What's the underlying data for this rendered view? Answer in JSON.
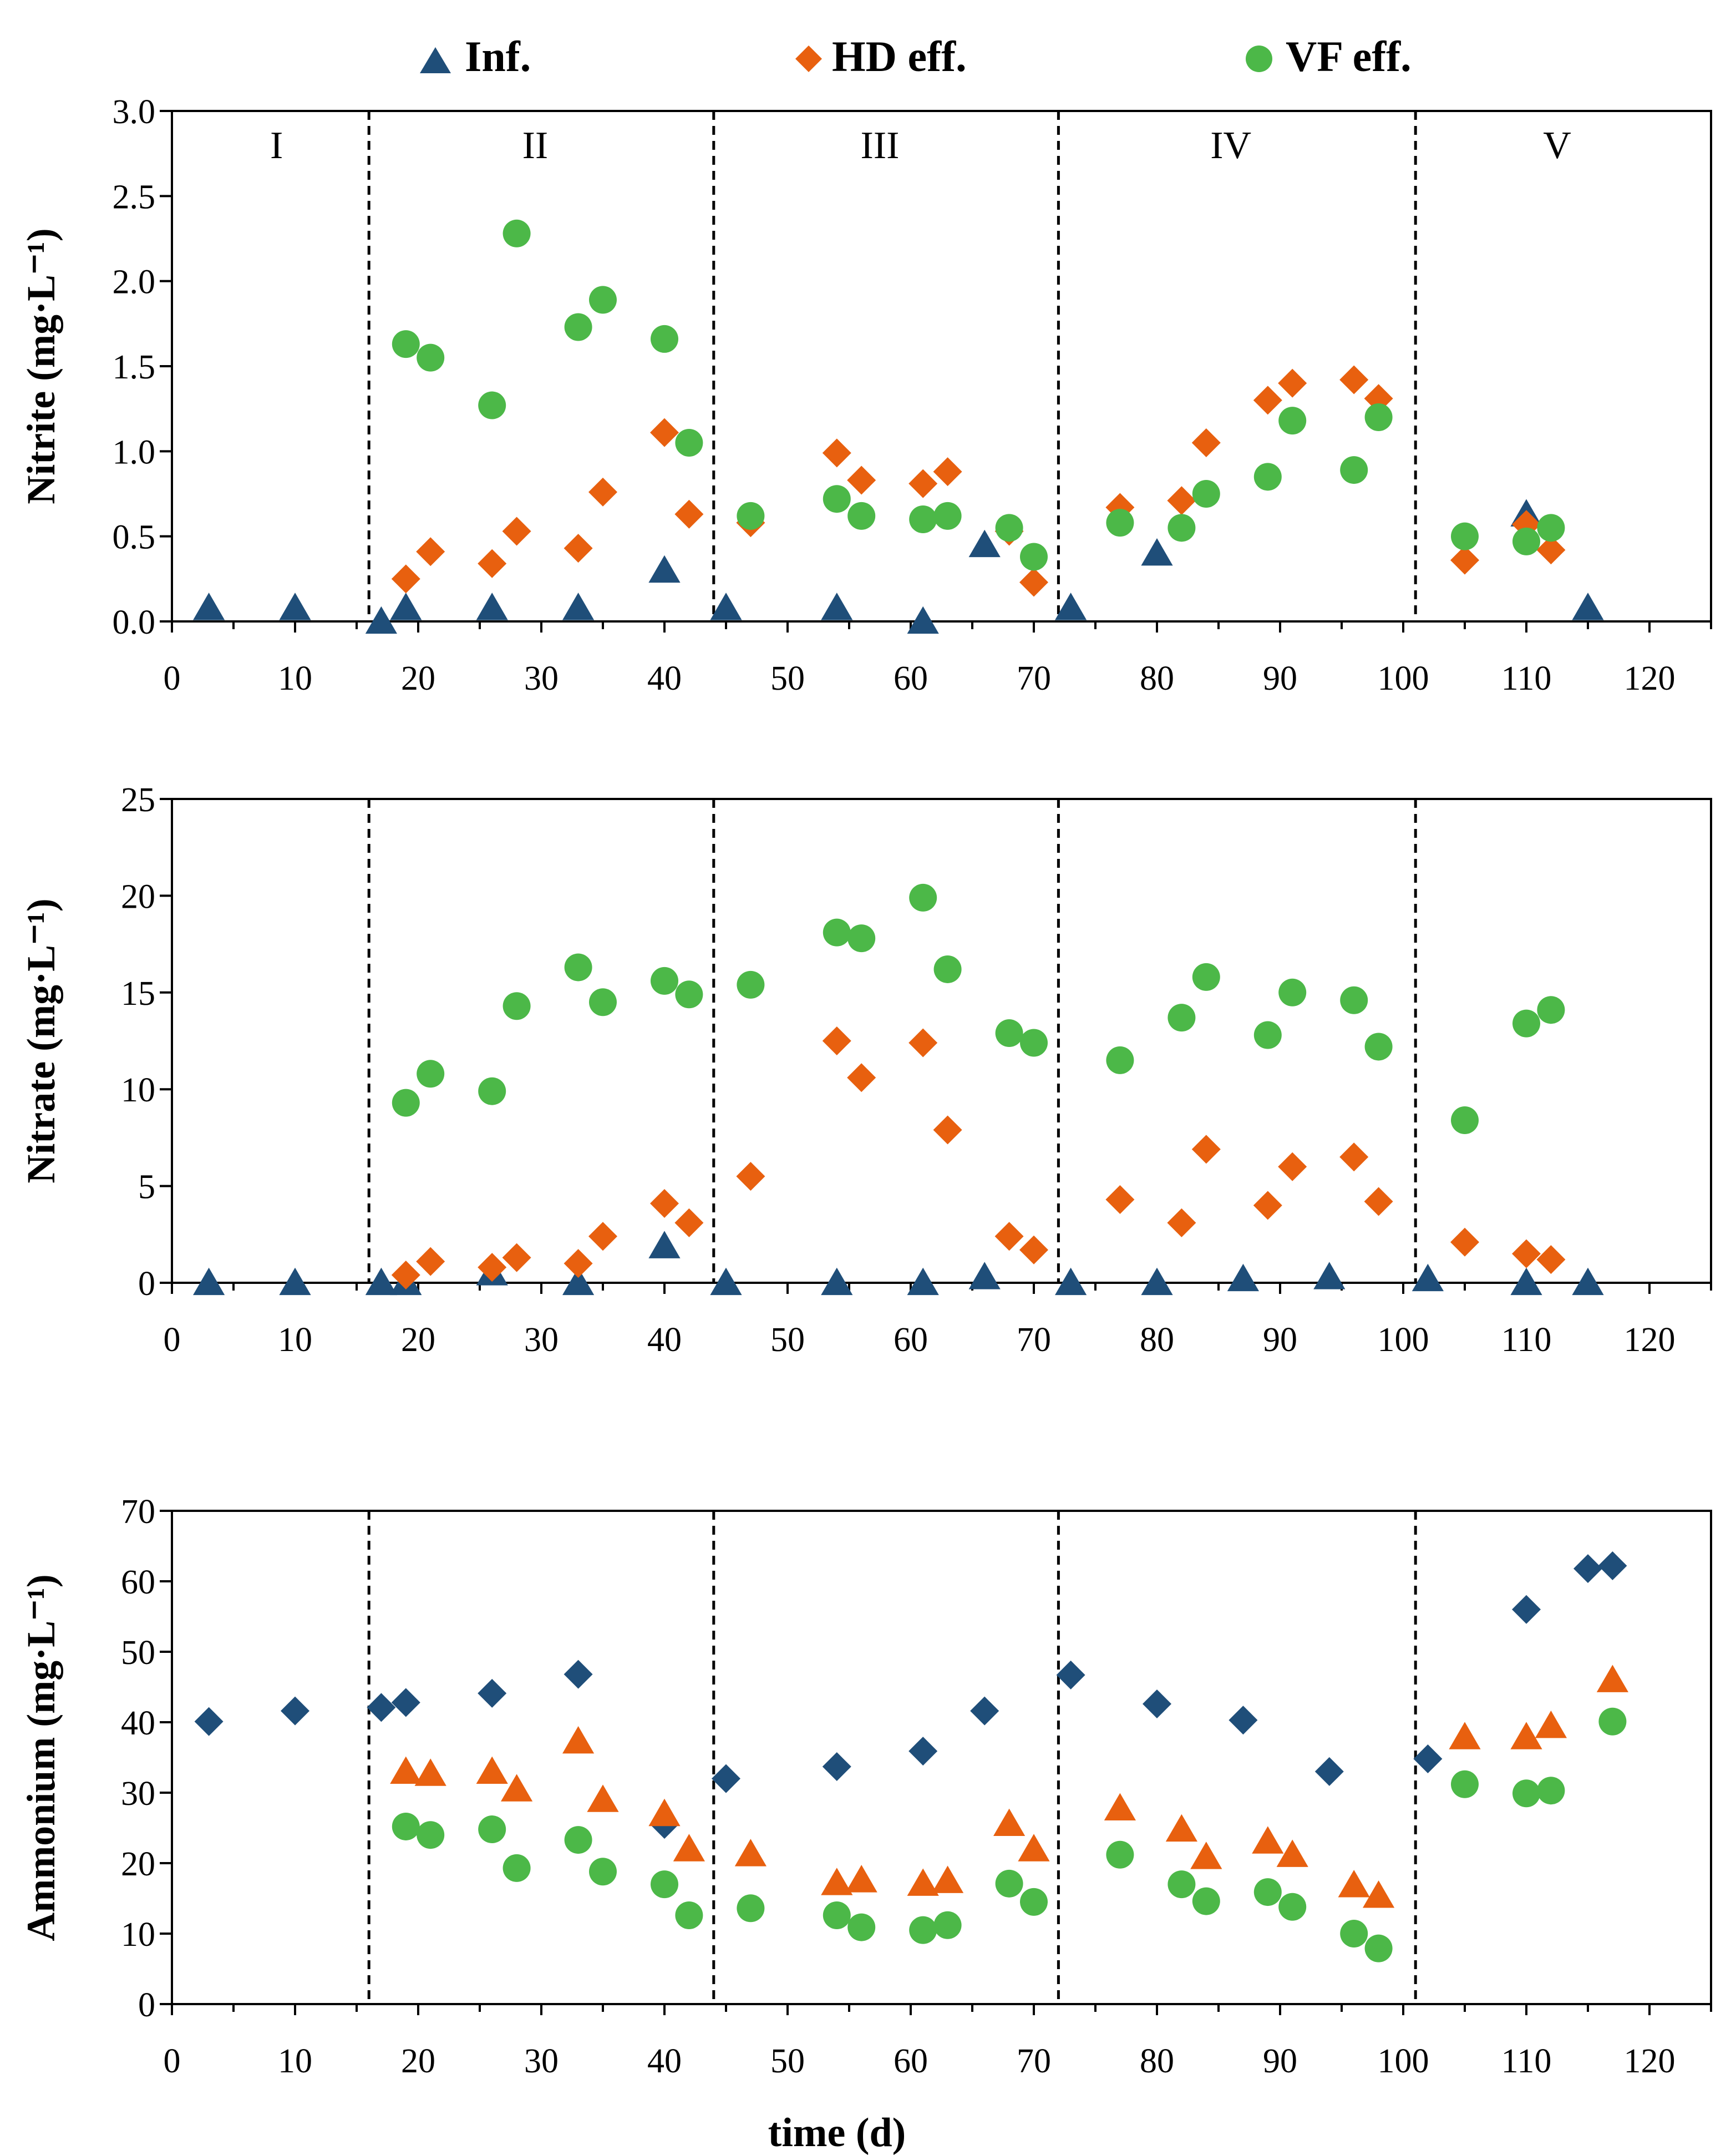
{
  "legend": [
    {
      "label": "Inf.",
      "marker": "triangle",
      "color": "#1f4e79"
    },
    {
      "label": "HD eff.",
      "marker": "diamond",
      "color": "#e8600f"
    },
    {
      "label": "VF eff.",
      "marker": "circle",
      "color": "#4cb848"
    }
  ],
  "xlabel": "time (d)",
  "phase_boundaries": [
    16,
    44,
    72,
    101
  ],
  "colors": {
    "navy": "#1f4e79",
    "orange": "#e8600f",
    "green": "#4cb848"
  },
  "chart_data": [
    {
      "type": "scatter",
      "ylabel": "Nitrite (mg·L⁻¹)",
      "xlim": [
        0,
        125
      ],
      "ylim": [
        0,
        3
      ],
      "xticks": [
        0,
        10,
        20,
        30,
        40,
        50,
        60,
        70,
        80,
        90,
        100,
        110,
        120
      ],
      "yticks": [
        "0.0",
        "0.5",
        "1.0",
        "1.5",
        "2.0",
        "2.5",
        "3.0"
      ],
      "phase_labels": [
        {
          "text": "I",
          "x": 8.5
        },
        {
          "text": "II",
          "x": 29.5
        },
        {
          "text": "III",
          "x": 57.5
        },
        {
          "text": "IV",
          "x": 86
        },
        {
          "text": "V",
          "x": 112.5
        }
      ],
      "series": [
        {
          "name": "Inf.",
          "marker": "triangle",
          "color": "#1f4e79",
          "x": [
            3,
            10,
            17,
            19,
            26,
            33,
            40,
            45,
            54,
            61,
            66,
            73,
            80,
            110,
            115
          ],
          "y": [
            0.08,
            0.08,
            0.0,
            0.08,
            0.08,
            0.08,
            0.3,
            0.08,
            0.08,
            0.0,
            0.45,
            0.08,
            0.4,
            0.63,
            0.08
          ]
        },
        {
          "name": "HD eff.",
          "marker": "diamond",
          "color": "#e8600f",
          "x": [
            19,
            21,
            26,
            28,
            33,
            35,
            40,
            42,
            47,
            54,
            56,
            61,
            63,
            68,
            70,
            77,
            82,
            84,
            89,
            91,
            96,
            98,
            105,
            110,
            112
          ],
          "y": [
            0.25,
            0.41,
            0.34,
            0.53,
            0.43,
            0.76,
            1.11,
            0.63,
            0.58,
            0.99,
            0.83,
            0.81,
            0.88,
            0.53,
            0.23,
            0.67,
            0.71,
            1.05,
            1.3,
            1.4,
            1.42,
            1.31,
            0.36,
            0.57,
            0.42
          ]
        },
        {
          "name": "VF eff.",
          "marker": "circle",
          "color": "#4cb848",
          "x": [
            19,
            21,
            26,
            28,
            33,
            35,
            40,
            42,
            47,
            54,
            56,
            61,
            63,
            68,
            70,
            77,
            82,
            84,
            89,
            91,
            96,
            98,
            105,
            110,
            112
          ],
          "y": [
            1.63,
            1.55,
            1.27,
            2.28,
            1.73,
            1.89,
            1.66,
            1.05,
            0.62,
            0.72,
            0.62,
            0.6,
            0.62,
            0.55,
            0.38,
            0.58,
            0.55,
            0.75,
            0.85,
            1.18,
            0.89,
            1.2,
            0.5,
            0.47,
            0.55
          ]
        }
      ]
    },
    {
      "type": "scatter",
      "ylabel": "Nitrate (mg·L⁻¹)",
      "xlim": [
        0,
        125
      ],
      "ylim": [
        0,
        25
      ],
      "xticks": [
        0,
        10,
        20,
        30,
        40,
        50,
        60,
        70,
        80,
        90,
        100,
        110,
        120
      ],
      "yticks": [
        "0",
        "5",
        "10",
        "15",
        "20",
        "25"
      ],
      "series": [
        {
          "name": "Inf.",
          "marker": "triangle",
          "color": "#1f4e79",
          "x": [
            3,
            10,
            17,
            19,
            26,
            33,
            40,
            45,
            54,
            61,
            66,
            73,
            80,
            87,
            94,
            102,
            110,
            115
          ],
          "y": [
            0,
            0,
            0,
            0,
            0.5,
            0,
            1.9,
            0,
            0,
            0,
            0.3,
            0,
            0,
            0.2,
            0.3,
            0.2,
            0,
            0
          ]
        },
        {
          "name": "HD eff.",
          "marker": "diamond",
          "color": "#e8600f",
          "x": [
            19,
            21,
            26,
            28,
            33,
            35,
            40,
            42,
            47,
            54,
            56,
            61,
            63,
            68,
            70,
            77,
            82,
            84,
            89,
            91,
            96,
            98,
            105,
            110,
            112
          ],
          "y": [
            0.4,
            1.1,
            0.8,
            1.3,
            1.0,
            2.4,
            4.1,
            3.1,
            5.5,
            12.5,
            10.6,
            12.4,
            7.9,
            2.4,
            1.7,
            4.3,
            3.1,
            6.9,
            4.0,
            6.0,
            6.5,
            4.2,
            2.1,
            1.5,
            1.2
          ]
        },
        {
          "name": "VF eff.",
          "marker": "circle",
          "color": "#4cb848",
          "x": [
            19,
            21,
            26,
            28,
            33,
            35,
            40,
            42,
            47,
            54,
            56,
            61,
            63,
            68,
            70,
            77,
            82,
            84,
            89,
            91,
            96,
            98,
            105,
            110,
            112
          ],
          "y": [
            9.3,
            10.8,
            9.9,
            14.3,
            16.3,
            14.5,
            15.6,
            14.9,
            15.4,
            18.1,
            17.8,
            19.9,
            16.2,
            12.9,
            12.4,
            11.5,
            13.7,
            15.8,
            12.8,
            15.0,
            14.6,
            12.2,
            8.4,
            13.4,
            14.1
          ]
        }
      ]
    },
    {
      "type": "scatter",
      "ylabel": "Ammonium (mg·L⁻¹)",
      "xlim": [
        0,
        125
      ],
      "ylim": [
        0,
        70
      ],
      "xticks": [
        0,
        10,
        20,
        30,
        40,
        50,
        60,
        70,
        80,
        90,
        100,
        110,
        120
      ],
      "yticks": [
        "0",
        "10",
        "20",
        "30",
        "40",
        "50",
        "60",
        "70"
      ],
      "series": [
        {
          "name": "Inf.",
          "marker": "diamond",
          "color": "#1f4e79",
          "x": [
            3,
            10,
            17,
            19,
            26,
            33,
            40,
            45,
            54,
            61,
            66,
            73,
            80,
            87,
            94,
            102,
            110,
            115,
            117
          ],
          "y": [
            40.1,
            41.6,
            42.1,
            42.8,
            44.1,
            46.8,
            25.5,
            32.0,
            33.7,
            35.9,
            41.6,
            46.7,
            42.6,
            40.3,
            33.0,
            34.8,
            56.0,
            61.8,
            62.2
          ]
        },
        {
          "name": "HD eff.",
          "marker": "triangle",
          "color": "#e8600f",
          "x": [
            19,
            21,
            26,
            28,
            33,
            35,
            40,
            42,
            47,
            54,
            56,
            61,
            63,
            68,
            70,
            77,
            82,
            84,
            89,
            91,
            96,
            98,
            105,
            110,
            112,
            117
          ],
          "y": [
            33.0,
            32.7,
            33.0,
            30.5,
            37.3,
            29.0,
            27.0,
            22.0,
            21.3,
            17.2,
            17.6,
            17.1,
            17.5,
            25.6,
            22.0,
            27.8,
            24.8,
            20.9,
            23.1,
            21.2,
            16.9,
            15.4,
            37.9,
            37.9,
            39.5,
            46.0
          ]
        },
        {
          "name": "VF eff.",
          "marker": "circle",
          "color": "#4cb848",
          "x": [
            19,
            21,
            26,
            28,
            33,
            35,
            40,
            42,
            47,
            54,
            56,
            61,
            63,
            68,
            70,
            77,
            82,
            84,
            89,
            91,
            96,
            98,
            105,
            110,
            112,
            117
          ],
          "y": [
            25.2,
            24.0,
            24.8,
            19.3,
            23.3,
            18.8,
            17.0,
            12.6,
            13.6,
            12.6,
            10.9,
            10.5,
            11.2,
            17.1,
            14.5,
            21.2,
            17.0,
            14.6,
            15.9,
            13.8,
            10.0,
            7.9,
            31.2,
            29.9,
            30.3,
            40.1
          ]
        }
      ]
    }
  ]
}
